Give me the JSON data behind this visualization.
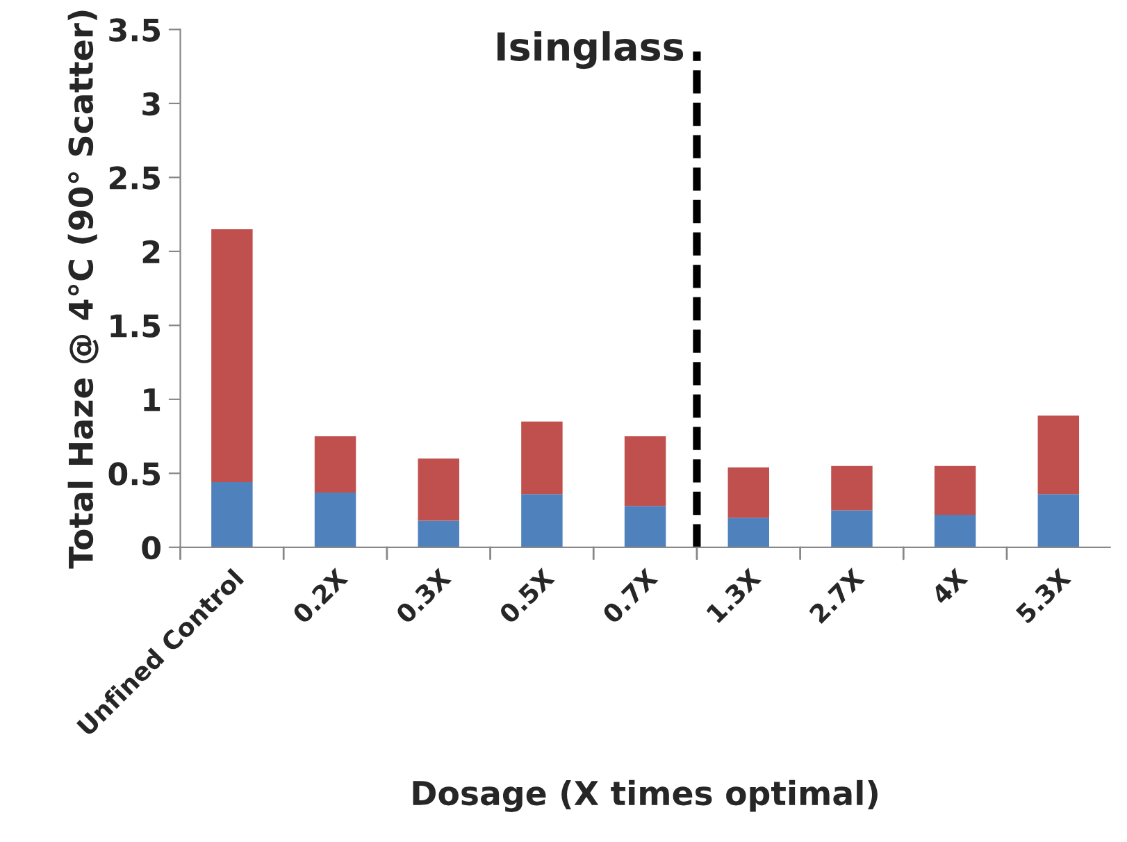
{
  "chart_data": {
    "type": "bar",
    "stacked": true,
    "xlabel": "Dosage (X times optimal)",
    "ylabel": "Total Haze @ 4°C (90° Scatter)",
    "categories": [
      "Unfined Control",
      "0.2X",
      "0.3X",
      "0.5X",
      "0.7X",
      "1.3X",
      "2.7X",
      "4X",
      "5.3X"
    ],
    "series": [
      {
        "color": "#4f81bd",
        "values": [
          0.44,
          0.37,
          0.18,
          0.36,
          0.28,
          0.2,
          0.25,
          0.22,
          0.36
        ]
      },
      {
        "color": "#c0504d",
        "values": [
          1.71,
          0.38,
          0.42,
          0.49,
          0.47,
          0.34,
          0.3,
          0.33,
          0.53
        ]
      }
    ],
    "ylim": [
      0,
      3.5
    ],
    "yticks": [
      0,
      0.5,
      1,
      1.5,
      2,
      2.5,
      3,
      3.5
    ],
    "annotations": [
      "Isinglass"
    ],
    "grid": false,
    "legend": false
  }
}
